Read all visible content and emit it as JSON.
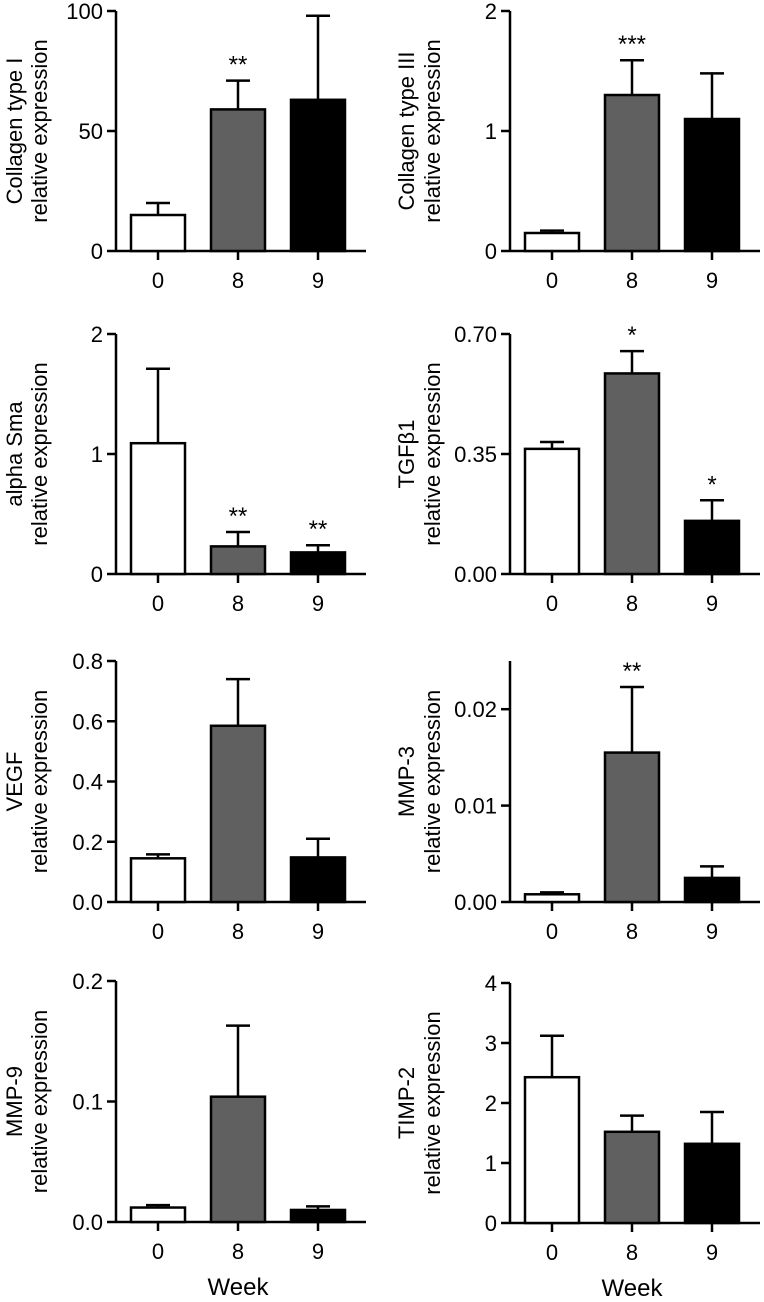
{
  "colors": {
    "week0": "#ffffff",
    "week8": "#606060",
    "week9": "#000000",
    "stroke": "#000000"
  },
  "chart_data": [
    {
      "type": "bar",
      "ylabel_lines": [
        "Collagen type I",
        "relative expression"
      ],
      "categories": [
        "0",
        "8",
        "9"
      ],
      "values": [
        15,
        59,
        63
      ],
      "errors": [
        20,
        71,
        98
      ],
      "significance": [
        "",
        "**",
        ""
      ],
      "ylim": [
        0,
        100
      ],
      "yticks": [
        0,
        50,
        100
      ],
      "ytick_labels": [
        "0",
        "50",
        "100"
      ],
      "xlabel": ""
    },
    {
      "type": "bar",
      "ylabel_lines": [
        "Collagen type III",
        "relative expression"
      ],
      "categories": [
        "0",
        "8",
        "9"
      ],
      "values": [
        0.15,
        1.3,
        1.1
      ],
      "errors": [
        0.17,
        1.59,
        1.48
      ],
      "significance": [
        "",
        "***",
        ""
      ],
      "ylim": [
        0,
        2
      ],
      "yticks": [
        0,
        1,
        2
      ],
      "ytick_labels": [
        "0",
        "1",
        "2"
      ],
      "xlabel": ""
    },
    {
      "type": "bar",
      "ylabel_lines": [
        "alpha Sma",
        "relative expression"
      ],
      "categories": [
        "0",
        "8",
        "9"
      ],
      "values": [
        1.09,
        0.23,
        0.18
      ],
      "errors": [
        1.71,
        0.35,
        0.24
      ],
      "significance": [
        "",
        "**",
        "**"
      ],
      "ylim": [
        0,
        2
      ],
      "yticks": [
        0,
        1,
        2
      ],
      "ytick_labels": [
        "0",
        "1",
        "2"
      ],
      "xlabel": ""
    },
    {
      "type": "bar",
      "ylabel_lines": [
        "TGFβ1",
        "relative expression"
      ],
      "categories": [
        "0",
        "8",
        "9"
      ],
      "values": [
        0.365,
        0.585,
        0.155
      ],
      "errors": [
        0.385,
        0.65,
        0.215
      ],
      "significance": [
        "",
        "*",
        "*"
      ],
      "ylim": [
        0,
        0.7
      ],
      "yticks": [
        0,
        0.35,
        0.7
      ],
      "ytick_labels": [
        "0.00",
        "0.35",
        "0.70"
      ],
      "xlabel": ""
    },
    {
      "type": "bar",
      "ylabel_lines": [
        "VEGF",
        "relative expression"
      ],
      "categories": [
        "0",
        "8",
        "9"
      ],
      "values": [
        0.145,
        0.585,
        0.148
      ],
      "errors": [
        0.158,
        0.74,
        0.21
      ],
      "significance": [
        "",
        "",
        ""
      ],
      "ylim": [
        0,
        0.8
      ],
      "yticks": [
        0,
        0.2,
        0.4,
        0.6,
        0.8
      ],
      "ytick_labels": [
        "0.0",
        "0.2",
        "0.4",
        "0.6",
        "0.8"
      ],
      "xlabel": ""
    },
    {
      "type": "bar",
      "ylabel_lines": [
        "MMP-3",
        "relative expression"
      ],
      "categories": [
        "0",
        "8",
        "9"
      ],
      "values": [
        0.0008,
        0.0155,
        0.0025
      ],
      "errors": [
        0.001,
        0.0223,
        0.0037
      ],
      "significance": [
        "",
        "**",
        ""
      ],
      "ylim": [
        0,
        0.025
      ],
      "yticks": [
        0,
        0.01,
        0.02
      ],
      "ytick_labels": [
        "0.00",
        "0.01",
        "0.02"
      ],
      "xlabel": ""
    },
    {
      "type": "bar",
      "ylabel_lines": [
        "MMP-9",
        "relative expression"
      ],
      "categories": [
        "0",
        "8",
        "9"
      ],
      "values": [
        0.012,
        0.104,
        0.01
      ],
      "errors": [
        0.014,
        0.163,
        0.013
      ],
      "significance": [
        "",
        "",
        ""
      ],
      "ylim": [
        0,
        0.2
      ],
      "yticks": [
        0,
        0.1,
        0.2
      ],
      "ytick_labels": [
        "0.0",
        "0.1",
        "0.2"
      ],
      "xlabel": "Week"
    },
    {
      "type": "bar",
      "ylabel_lines": [
        "TIMP-2",
        "relative expression"
      ],
      "categories": [
        "0",
        "8",
        "9"
      ],
      "values": [
        2.43,
        1.52,
        1.32
      ],
      "errors": [
        3.12,
        1.79,
        1.85
      ],
      "significance": [
        "",
        "",
        ""
      ],
      "ylim": [
        0,
        4
      ],
      "yticks": [
        0,
        1,
        2,
        3,
        4
      ],
      "ytick_labels": [
        "0",
        "1",
        "2",
        "3",
        "4"
      ],
      "xlabel": "Week"
    }
  ]
}
